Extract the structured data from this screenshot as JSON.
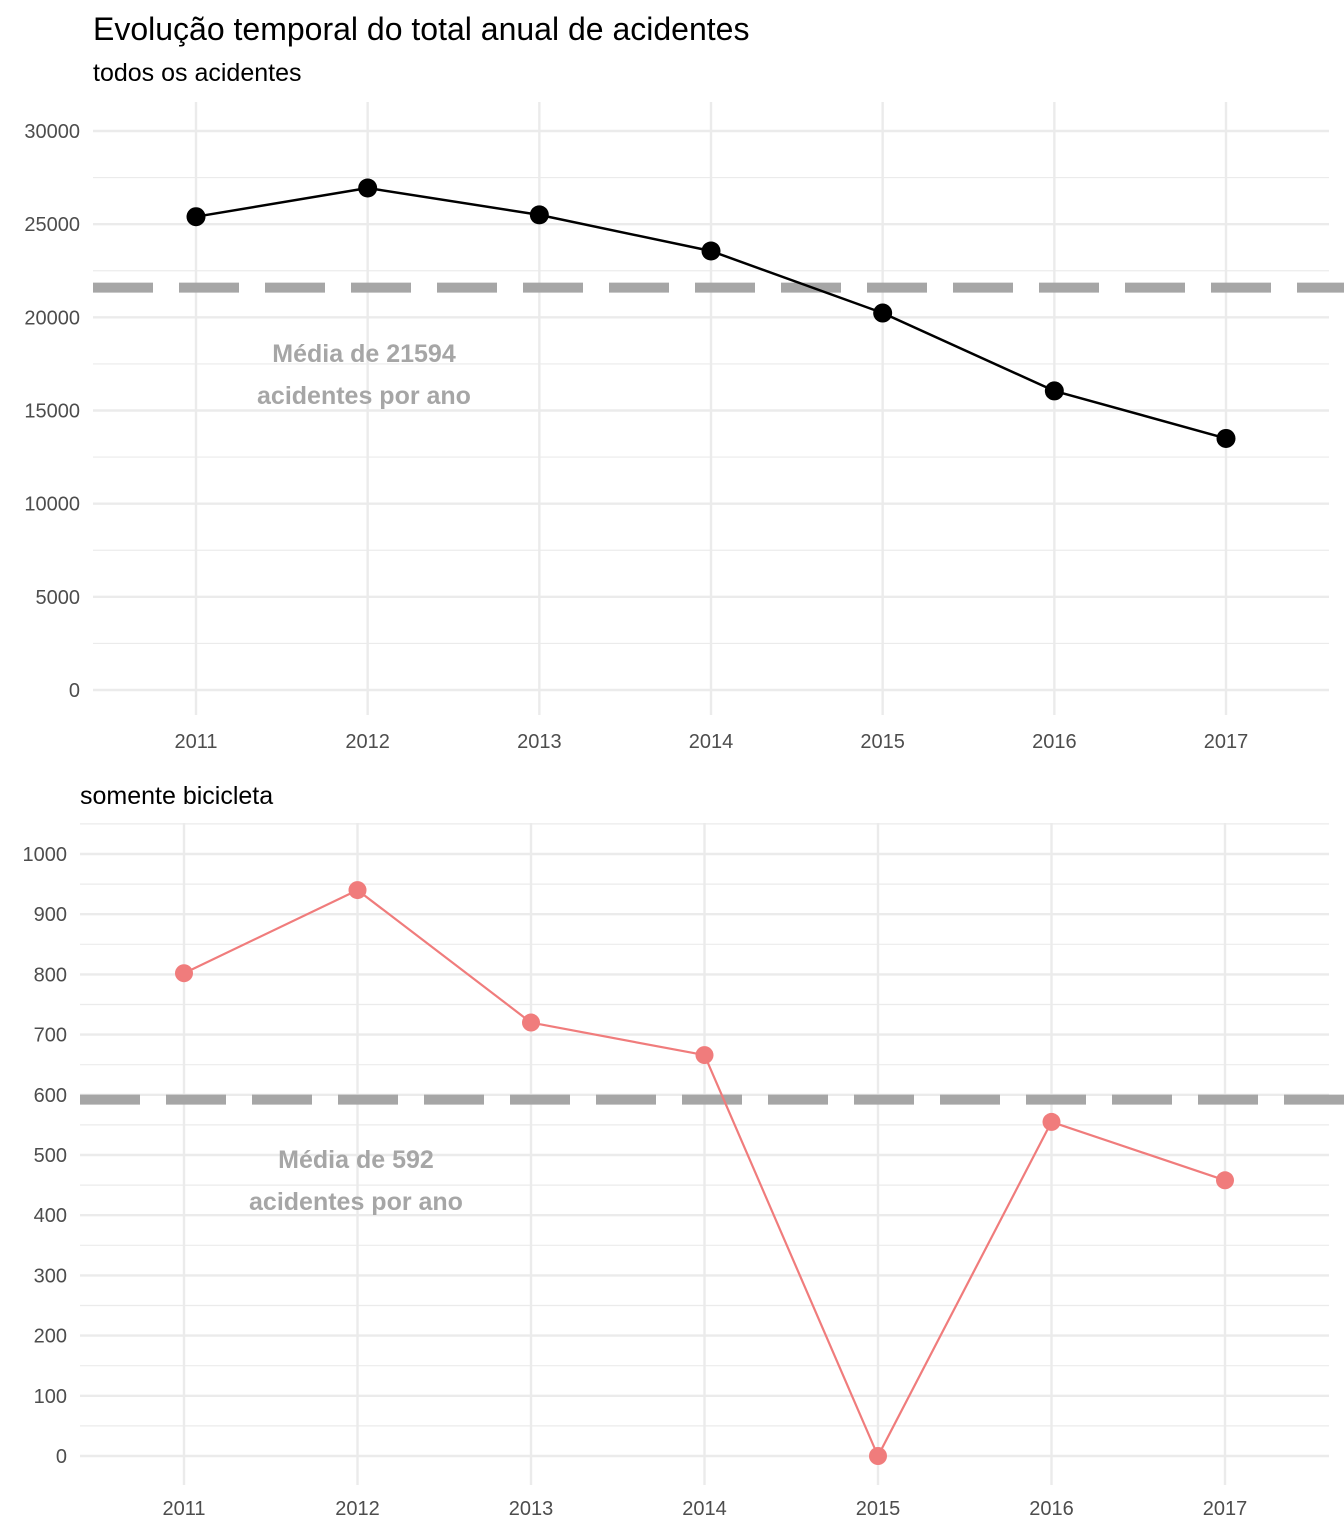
{
  "title": "Evolução temporal do total anual de acidentes",
  "chart_data": [
    {
      "type": "line",
      "subtitle": "todos os acidentes",
      "x": [
        "2011",
        "2012",
        "2013",
        "2014",
        "2015",
        "2016",
        "2017"
      ],
      "values": [
        25400,
        26940,
        25500,
        23560,
        20230,
        16050,
        13500
      ],
      "ylim": [
        0,
        30000
      ],
      "yticks": [
        "0",
        "5000",
        "10000",
        "15000",
        "20000",
        "25000",
        "30000"
      ],
      "mean": 21594,
      "annotation": [
        "Média de 21594",
        "acidentes por ano"
      ],
      "color": "#000000",
      "mean_color": "#a6a6a6",
      "grid": true
    },
    {
      "type": "line",
      "subtitle": "somente bicicleta",
      "x": [
        "2011",
        "2012",
        "2013",
        "2014",
        "2015",
        "2016",
        "2017"
      ],
      "values": [
        802,
        940,
        720,
        666,
        0,
        555,
        458
      ],
      "ylim": [
        0,
        1000
      ],
      "yticks": [
        "0",
        "100",
        "200",
        "300",
        "400",
        "500",
        "600",
        "700",
        "800",
        "900",
        "1000"
      ],
      "mean": 592,
      "annotation": [
        "Média de 592",
        "acidentes por ano"
      ],
      "color": "#f07c7c",
      "mean_color": "#a6a6a6",
      "grid": true
    }
  ]
}
